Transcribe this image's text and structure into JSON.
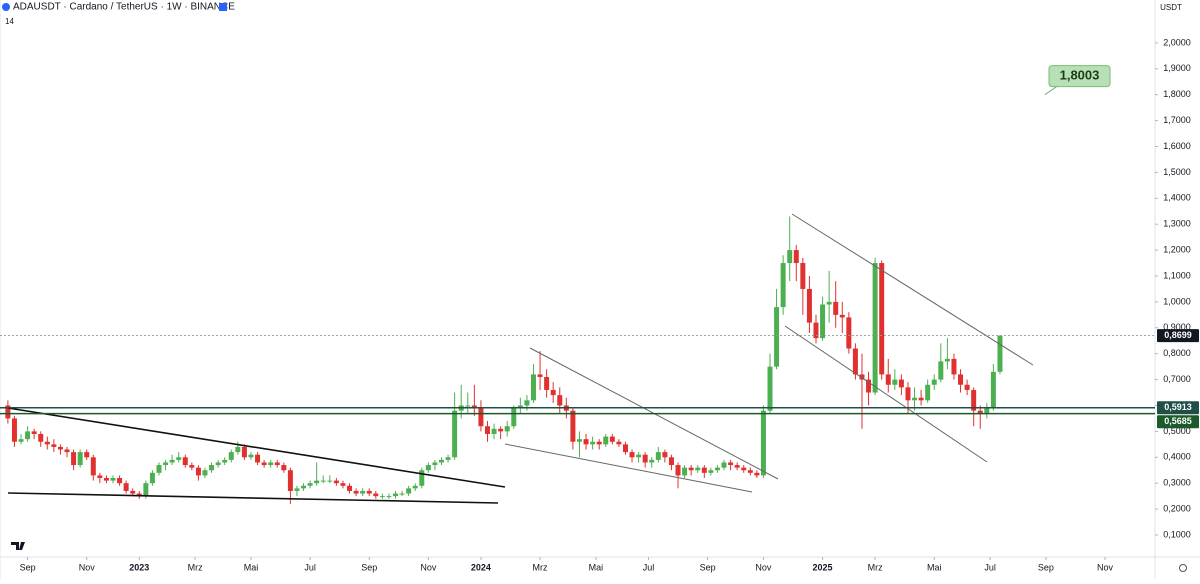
{
  "chart_data": {
    "type": "candlestick",
    "title": "ADAUSDT · Cardano / TetherUS · 1W · BINANCE",
    "badge": "14",
    "currency": "USDT",
    "up_color": "#4caf50",
    "down_color": "#e0302f",
    "candles": [
      [
        0.6,
        0.62,
        0.53,
        0.55
      ],
      [
        0.55,
        0.56,
        0.44,
        0.46
      ],
      [
        0.46,
        0.49,
        0.45,
        0.47
      ],
      [
        0.47,
        0.52,
        0.46,
        0.5
      ],
      [
        0.5,
        0.51,
        0.47,
        0.49
      ],
      [
        0.49,
        0.5,
        0.44,
        0.46
      ],
      [
        0.46,
        0.48,
        0.43,
        0.45
      ],
      [
        0.45,
        0.47,
        0.42,
        0.44
      ],
      [
        0.44,
        0.45,
        0.41,
        0.43
      ],
      [
        0.43,
        0.44,
        0.4,
        0.42
      ],
      [
        0.42,
        0.43,
        0.35,
        0.37
      ],
      [
        0.37,
        0.43,
        0.36,
        0.42
      ],
      [
        0.42,
        0.43,
        0.39,
        0.4
      ],
      [
        0.4,
        0.41,
        0.31,
        0.33
      ],
      [
        0.33,
        0.34,
        0.3,
        0.32
      ],
      [
        0.32,
        0.33,
        0.3,
        0.31
      ],
      [
        0.31,
        0.33,
        0.3,
        0.32
      ],
      [
        0.32,
        0.33,
        0.29,
        0.3
      ],
      [
        0.3,
        0.31,
        0.26,
        0.27
      ],
      [
        0.27,
        0.28,
        0.25,
        0.26
      ],
      [
        0.26,
        0.27,
        0.24,
        0.25
      ],
      [
        0.25,
        0.31,
        0.24,
        0.3
      ],
      [
        0.3,
        0.35,
        0.29,
        0.34
      ],
      [
        0.34,
        0.38,
        0.33,
        0.37
      ],
      [
        0.37,
        0.39,
        0.35,
        0.38
      ],
      [
        0.38,
        0.41,
        0.37,
        0.39
      ],
      [
        0.39,
        0.42,
        0.38,
        0.4
      ],
      [
        0.4,
        0.41,
        0.36,
        0.37
      ],
      [
        0.37,
        0.38,
        0.35,
        0.36
      ],
      [
        0.36,
        0.37,
        0.31,
        0.33
      ],
      [
        0.33,
        0.36,
        0.32,
        0.35
      ],
      [
        0.35,
        0.38,
        0.34,
        0.37
      ],
      [
        0.37,
        0.39,
        0.36,
        0.38
      ],
      [
        0.38,
        0.4,
        0.37,
        0.39
      ],
      [
        0.39,
        0.43,
        0.38,
        0.42
      ],
      [
        0.42,
        0.46,
        0.41,
        0.44
      ],
      [
        0.44,
        0.45,
        0.39,
        0.4
      ],
      [
        0.4,
        0.42,
        0.39,
        0.41
      ],
      [
        0.41,
        0.42,
        0.37,
        0.38
      ],
      [
        0.38,
        0.39,
        0.36,
        0.37
      ],
      [
        0.37,
        0.39,
        0.36,
        0.38
      ],
      [
        0.38,
        0.39,
        0.36,
        0.37
      ],
      [
        0.37,
        0.38,
        0.34,
        0.35
      ],
      [
        0.35,
        0.36,
        0.22,
        0.27
      ],
      [
        0.27,
        0.29,
        0.25,
        0.28
      ],
      [
        0.28,
        0.3,
        0.27,
        0.29
      ],
      [
        0.29,
        0.31,
        0.28,
        0.3
      ],
      [
        0.3,
        0.38,
        0.29,
        0.31
      ],
      [
        0.31,
        0.33,
        0.3,
        0.31
      ],
      [
        0.31,
        0.33,
        0.3,
        0.31
      ],
      [
        0.31,
        0.32,
        0.29,
        0.3
      ],
      [
        0.3,
        0.31,
        0.28,
        0.29
      ],
      [
        0.29,
        0.3,
        0.26,
        0.27
      ],
      [
        0.27,
        0.28,
        0.25,
        0.26
      ],
      [
        0.26,
        0.28,
        0.25,
        0.27
      ],
      [
        0.27,
        0.28,
        0.25,
        0.26
      ],
      [
        0.26,
        0.27,
        0.24,
        0.25
      ],
      [
        0.25,
        0.26,
        0.24,
        0.25
      ],
      [
        0.25,
        0.26,
        0.24,
        0.25
      ],
      [
        0.25,
        0.27,
        0.24,
        0.26
      ],
      [
        0.26,
        0.27,
        0.25,
        0.26
      ],
      [
        0.26,
        0.29,
        0.25,
        0.28
      ],
      [
        0.28,
        0.3,
        0.27,
        0.29
      ],
      [
        0.29,
        0.36,
        0.28,
        0.35
      ],
      [
        0.35,
        0.38,
        0.34,
        0.37
      ],
      [
        0.37,
        0.39,
        0.35,
        0.38
      ],
      [
        0.38,
        0.4,
        0.37,
        0.39
      ],
      [
        0.39,
        0.41,
        0.38,
        0.4
      ],
      [
        0.4,
        0.65,
        0.39,
        0.58
      ],
      [
        0.58,
        0.68,
        0.55,
        0.6
      ],
      [
        0.6,
        0.65,
        0.57,
        0.6
      ],
      [
        0.6,
        0.68,
        0.56,
        0.59
      ],
      [
        0.59,
        0.62,
        0.5,
        0.52
      ],
      [
        0.52,
        0.54,
        0.46,
        0.49
      ],
      [
        0.49,
        0.53,
        0.47,
        0.51
      ],
      [
        0.51,
        0.52,
        0.47,
        0.5
      ],
      [
        0.5,
        0.54,
        0.48,
        0.52
      ],
      [
        0.52,
        0.6,
        0.51,
        0.59
      ],
      [
        0.59,
        0.63,
        0.57,
        0.6
      ],
      [
        0.6,
        0.64,
        0.58,
        0.62
      ],
      [
        0.62,
        0.76,
        0.61,
        0.72
      ],
      [
        0.72,
        0.81,
        0.66,
        0.71
      ],
      [
        0.71,
        0.74,
        0.63,
        0.66
      ],
      [
        0.66,
        0.69,
        0.61,
        0.64
      ],
      [
        0.64,
        0.67,
        0.57,
        0.6
      ],
      [
        0.6,
        0.63,
        0.55,
        0.58
      ],
      [
        0.58,
        0.59,
        0.43,
        0.46
      ],
      [
        0.46,
        0.5,
        0.4,
        0.47
      ],
      [
        0.47,
        0.49,
        0.43,
        0.45
      ],
      [
        0.45,
        0.48,
        0.43,
        0.46
      ],
      [
        0.46,
        0.47,
        0.43,
        0.45
      ],
      [
        0.45,
        0.49,
        0.44,
        0.48
      ],
      [
        0.48,
        0.49,
        0.45,
        0.46
      ],
      [
        0.46,
        0.47,
        0.44,
        0.45
      ],
      [
        0.45,
        0.46,
        0.41,
        0.42
      ],
      [
        0.42,
        0.43,
        0.38,
        0.4
      ],
      [
        0.4,
        0.42,
        0.38,
        0.41
      ],
      [
        0.41,
        0.42,
        0.36,
        0.38
      ],
      [
        0.38,
        0.4,
        0.36,
        0.39
      ],
      [
        0.39,
        0.44,
        0.38,
        0.42
      ],
      [
        0.42,
        0.43,
        0.38,
        0.4
      ],
      [
        0.4,
        0.41,
        0.35,
        0.37
      ],
      [
        0.37,
        0.38,
        0.28,
        0.33
      ],
      [
        0.33,
        0.37,
        0.32,
        0.36
      ],
      [
        0.36,
        0.37,
        0.33,
        0.35
      ],
      [
        0.35,
        0.37,
        0.34,
        0.36
      ],
      [
        0.36,
        0.37,
        0.32,
        0.34
      ],
      [
        0.34,
        0.36,
        0.33,
        0.35
      ],
      [
        0.35,
        0.37,
        0.34,
        0.36
      ],
      [
        0.36,
        0.39,
        0.35,
        0.38
      ],
      [
        0.38,
        0.39,
        0.35,
        0.37
      ],
      [
        0.37,
        0.38,
        0.35,
        0.36
      ],
      [
        0.36,
        0.37,
        0.34,
        0.35
      ],
      [
        0.35,
        0.36,
        0.33,
        0.34
      ],
      [
        0.34,
        0.35,
        0.32,
        0.33
      ],
      [
        0.33,
        0.6,
        0.32,
        0.58
      ],
      [
        0.58,
        0.8,
        0.57,
        0.75
      ],
      [
        0.75,
        1.05,
        0.74,
        0.98
      ],
      [
        0.98,
        1.18,
        0.95,
        1.15
      ],
      [
        1.15,
        1.33,
        1.08,
        1.2
      ],
      [
        1.2,
        1.22,
        1.08,
        1.15
      ],
      [
        1.15,
        1.17,
        0.95,
        1.05
      ],
      [
        1.05,
        1.1,
        0.88,
        0.92
      ],
      [
        0.92,
        0.95,
        0.84,
        0.86
      ],
      [
        0.86,
        1.02,
        0.85,
        0.99
      ],
      [
        0.99,
        1.12,
        0.92,
        1.0
      ],
      [
        1.0,
        1.08,
        0.9,
        0.95
      ],
      [
        0.95,
        1.0,
        0.88,
        0.94
      ],
      [
        0.94,
        0.96,
        0.8,
        0.82
      ],
      [
        0.82,
        0.84,
        0.7,
        0.72
      ],
      [
        0.72,
        0.8,
        0.51,
        0.7
      ],
      [
        0.7,
        0.73,
        0.6,
        0.65
      ],
      [
        0.65,
        1.17,
        0.64,
        1.15
      ],
      [
        1.15,
        1.16,
        0.7,
        0.72
      ],
      [
        0.72,
        0.78,
        0.65,
        0.68
      ],
      [
        0.68,
        0.74,
        0.66,
        0.7
      ],
      [
        0.7,
        0.72,
        0.64,
        0.67
      ],
      [
        0.67,
        0.69,
        0.57,
        0.62
      ],
      [
        0.62,
        0.67,
        0.58,
        0.63
      ],
      [
        0.63,
        0.66,
        0.6,
        0.62
      ],
      [
        0.62,
        0.7,
        0.61,
        0.68
      ],
      [
        0.68,
        0.72,
        0.66,
        0.7
      ],
      [
        0.7,
        0.84,
        0.69,
        0.77
      ],
      [
        0.77,
        0.86,
        0.74,
        0.78
      ],
      [
        0.78,
        0.8,
        0.7,
        0.72
      ],
      [
        0.72,
        0.74,
        0.65,
        0.68
      ],
      [
        0.68,
        0.7,
        0.64,
        0.66
      ],
      [
        0.66,
        0.67,
        0.52,
        0.58
      ],
      [
        0.58,
        0.6,
        0.51,
        0.57
      ],
      [
        0.57,
        0.61,
        0.55,
        0.59
      ],
      [
        0.59,
        0.76,
        0.58,
        0.73
      ],
      [
        0.73,
        0.87,
        0.72,
        0.8699
      ]
    ],
    "xlim": [
      -1.2,
      174.6
    ],
    "xticks": [
      {
        "value": 3,
        "label": "Sep"
      },
      {
        "value": 12,
        "label": "Nov"
      },
      {
        "value": 20,
        "label": "2023"
      },
      {
        "value": 28.5,
        "label": "Mrz"
      },
      {
        "value": 37,
        "label": "Mai"
      },
      {
        "value": 46,
        "label": "Jul"
      },
      {
        "value": 55,
        "label": "Sep"
      },
      {
        "value": 64,
        "label": "Nov"
      },
      {
        "value": 72,
        "label": "2024"
      },
      {
        "value": 81,
        "label": "Mrz"
      },
      {
        "value": 89.5,
        "label": "Mai"
      },
      {
        "value": 97.5,
        "label": "Jul"
      },
      {
        "value": 106.5,
        "label": "Sep"
      },
      {
        "value": 115,
        "label": "Nov"
      },
      {
        "value": 124,
        "label": "2025"
      },
      {
        "value": 132,
        "label": "Mrz"
      },
      {
        "value": 141,
        "label": "Mai"
      },
      {
        "value": 149.5,
        "label": "Jul"
      },
      {
        "value": 158,
        "label": "Sep"
      },
      {
        "value": 167,
        "label": "Nov"
      }
    ],
    "ylim": [
      0.015,
      2.1656
    ],
    "yticks": [
      {
        "value": 0.1,
        "label": "0,1000"
      },
      {
        "value": 0.2,
        "label": "0,2000"
      },
      {
        "value": 0.3,
        "label": "0,3000"
      },
      {
        "value": 0.4,
        "label": "0,4000"
      },
      {
        "value": 0.5,
        "label": "0,5000"
      },
      {
        "value": 0.6,
        "label": "0,6000"
      },
      {
        "value": 0.7,
        "label": "0,7000"
      },
      {
        "value": 0.8,
        "label": "0,8000"
      },
      {
        "value": 0.9,
        "label": "0,9000"
      },
      {
        "value": 1.0,
        "label": "1,0000"
      },
      {
        "value": 1.1,
        "label": "1,1000"
      },
      {
        "value": 1.2,
        "label": "1,2000"
      },
      {
        "value": 1.3,
        "label": "1,3000"
      },
      {
        "value": 1.4,
        "label": "1,4000"
      },
      {
        "value": 1.5,
        "label": "1,5000"
      },
      {
        "value": 1.6,
        "label": "1,6000"
      },
      {
        "value": 1.7,
        "label": "1,7000"
      },
      {
        "value": 1.8,
        "label": "1,8000"
      },
      {
        "value": 1.9,
        "label": "1,9000"
      },
      {
        "value": 2.0,
        "label": "2,0000"
      }
    ],
    "last_price": {
      "value": 0.8699,
      "label": "0,8699"
    },
    "price_lines": [
      {
        "value": 0.5913,
        "label": "0,5913",
        "color": "#1f4f47"
      },
      {
        "value": 0.5685,
        "label": "0,5685",
        "color": "#1c5a2c"
      }
    ],
    "annotation": {
      "value": 1.8003,
      "label": "1,8003"
    }
  }
}
